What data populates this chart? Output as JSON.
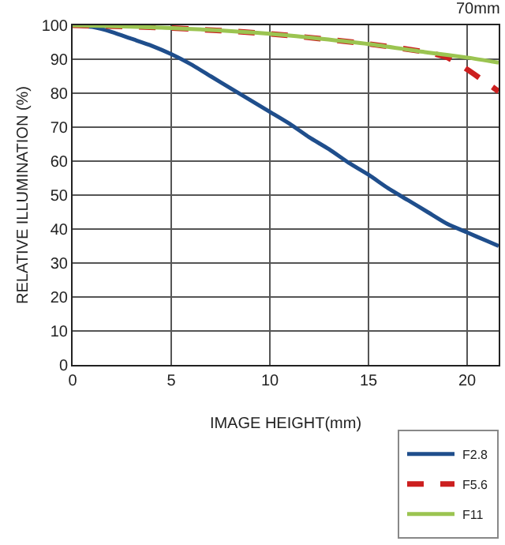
{
  "chart_data": {
    "type": "line",
    "title": "70mm",
    "xlabel": "IMAGE HEIGHT(mm)",
    "ylabel": "RELATIVE ILLUMINATION (%)",
    "xlim": [
      0,
      21.6
    ],
    "xticks": [
      0,
      5,
      10,
      15,
      20
    ],
    "ylim": [
      0,
      100
    ],
    "yticks": [
      0,
      10,
      20,
      30,
      40,
      50,
      60,
      70,
      80,
      90,
      100
    ],
    "grid": true,
    "legend": "bottom right",
    "series": [
      {
        "name": "F2.8",
        "color": "#1f4e8c",
        "line_style": "solid",
        "x": [
          0,
          1,
          2,
          3,
          4,
          5,
          6,
          7,
          8,
          9,
          10,
          11,
          12,
          13,
          14,
          15,
          16,
          17,
          18,
          19,
          20,
          21,
          21.6
        ],
        "values": [
          100,
          99.5,
          98,
          96,
          94,
          91.5,
          88.5,
          85,
          81.5,
          78,
          74.5,
          71,
          67,
          63.5,
          59.5,
          56,
          52,
          48.5,
          45,
          41.5,
          39,
          36.5,
          35
        ]
      },
      {
        "name": "F5.6",
        "color": "#cc1f1f",
        "line_style": "dashed",
        "x": [
          0,
          5,
          10,
          15,
          18,
          19,
          20,
          21,
          21.6
        ],
        "values": [
          100,
          99.2,
          97.5,
          94.5,
          92,
          90.5,
          87,
          83,
          80.5
        ]
      },
      {
        "name": "F11",
        "color": "#9bc451",
        "line_style": "solid",
        "x": [
          0,
          5,
          10,
          15,
          18,
          20,
          21.6
        ],
        "values": [
          100,
          99.2,
          97.5,
          94.5,
          92,
          90.5,
          89
        ]
      }
    ]
  }
}
